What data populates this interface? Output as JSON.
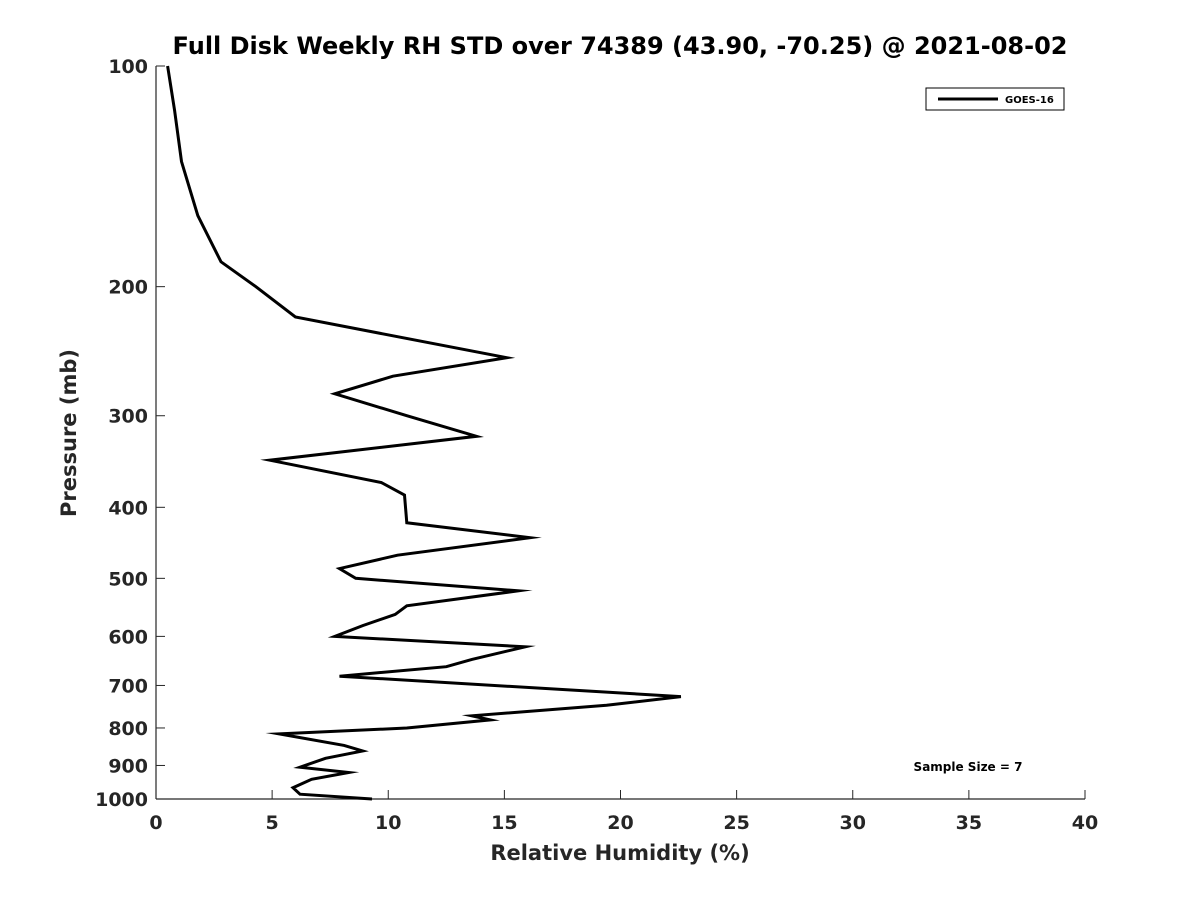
{
  "chart_data": {
    "type": "line",
    "title": "Full Disk Weekly RH STD over 74389 (43.90, -70.25) @ 2021-08-02",
    "xlabel": "Relative Humidity (%)",
    "ylabel": "Pressure (mb)",
    "xlim": [
      0,
      40
    ],
    "ylim": [
      100,
      1000
    ],
    "y_scale": "log",
    "y_inverted": true,
    "x_ticks": [
      0,
      5,
      10,
      15,
      20,
      25,
      30,
      35,
      40
    ],
    "y_ticks": [
      100,
      200,
      300,
      400,
      500,
      600,
      700,
      800,
      900,
      1000
    ],
    "grid": false,
    "legend_position": "top-right",
    "annotation": "Sample Size = 7",
    "series": [
      {
        "name": "GOES-16",
        "color": "#000000",
        "points": [
          [
            0.5,
            100
          ],
          [
            0.8,
            115
          ],
          [
            1.1,
            135
          ],
          [
            1.8,
            160
          ],
          [
            2.8,
            185
          ],
          [
            4.3,
            200
          ],
          [
            6.0,
            220
          ],
          [
            15.1,
            250
          ],
          [
            10.2,
            265
          ],
          [
            7.7,
            280
          ],
          [
            10.8,
            300
          ],
          [
            13.8,
            320
          ],
          [
            4.9,
            345
          ],
          [
            9.7,
            370
          ],
          [
            10.7,
            385
          ],
          [
            10.8,
            420
          ],
          [
            16.1,
            440
          ],
          [
            10.4,
            465
          ],
          [
            7.9,
            485
          ],
          [
            8.6,
            500
          ],
          [
            15.6,
            520
          ],
          [
            10.8,
            545
          ],
          [
            10.3,
            560
          ],
          [
            8.9,
            580
          ],
          [
            7.7,
            600
          ],
          [
            15.9,
            620
          ],
          [
            13.6,
            645
          ],
          [
            12.5,
            660
          ],
          [
            7.9,
            680
          ],
          [
            22.6,
            725
          ],
          [
            19.4,
            745
          ],
          [
            13.6,
            770
          ],
          [
            14.4,
            780
          ],
          [
            10.8,
            800
          ],
          [
            5.3,
            815
          ],
          [
            8.1,
            845
          ],
          [
            8.9,
            860
          ],
          [
            7.3,
            880
          ],
          [
            6.2,
            905
          ],
          [
            8.3,
            920
          ],
          [
            6.7,
            940
          ],
          [
            5.9,
            965
          ],
          [
            6.2,
            985
          ],
          [
            9.3,
            1000
          ]
        ]
      }
    ]
  }
}
